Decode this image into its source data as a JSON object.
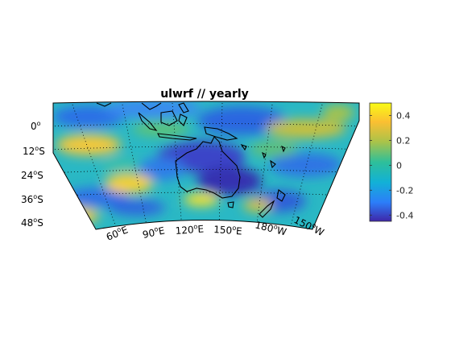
{
  "figure": {
    "title": "ulwrf // yearly",
    "variable": "ulwrf",
    "period": "yearly"
  },
  "map": {
    "projection": "curved lat/lon map segment",
    "lat_labels": [
      {
        "deg": "0",
        "hemi": ""
      },
      {
        "deg": "12",
        "hemi": "S"
      },
      {
        "deg": "24",
        "hemi": "S"
      },
      {
        "deg": "36",
        "hemi": "S"
      },
      {
        "deg": "48",
        "hemi": "S"
      }
    ],
    "lon_labels": [
      {
        "deg": "60",
        "hemi": "E"
      },
      {
        "deg": "90",
        "hemi": "E"
      },
      {
        "deg": "120",
        "hemi": "E"
      },
      {
        "deg": "150",
        "hemi": "E"
      },
      {
        "deg": "180",
        "hemi": "W"
      },
      {
        "deg": "150",
        "hemi": "W"
      }
    ],
    "grid": "dotted",
    "coastlines": true
  },
  "colorbar": {
    "colormap": "parula",
    "range": [
      -0.45,
      0.5
    ],
    "ticks": [
      "0.4",
      "0.2",
      "0",
      "-0.2",
      "-0.4"
    ],
    "tick_values": [
      0.4,
      0.2,
      0,
      -0.2,
      -0.4
    ],
    "colors": [
      "#3e26a8",
      "#2c7ef9",
      "#12b1d6",
      "#2ebf9a",
      "#a9c34a",
      "#fbbf32",
      "#f9fb15"
    ]
  }
}
